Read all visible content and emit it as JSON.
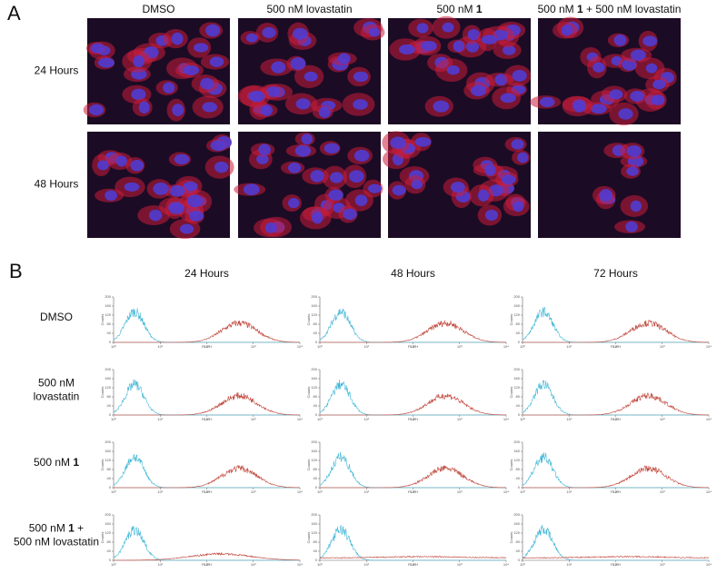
{
  "panel_a": {
    "label": "A",
    "columns": [
      [
        [
          {
            "text": "DMSO"
          }
        ]
      ],
      [
        [
          {
            "text": "500 nM lovastatin"
          }
        ]
      ],
      [
        [
          {
            "text": "500 nM "
          },
          {
            "text": "1",
            "bold": true
          }
        ]
      ],
      [
        [
          {
            "text": "500 nM "
          },
          {
            "text": "1",
            "bold": true
          },
          {
            "text": " + 500 nM lovastatin"
          }
        ]
      ]
    ],
    "rows": [
      "24 Hours",
      "48 Hours"
    ]
  },
  "panel_b": {
    "label": "B",
    "columns": [
      "24 Hours",
      "48 Hours",
      "72 Hours"
    ],
    "rows": [
      [
        [
          {
            "text": "DMSO"
          }
        ]
      ],
      [
        [
          {
            "text": "500 nM"
          }
        ],
        [
          {
            "text": "lovastatin"
          }
        ]
      ],
      [
        [
          {
            "text": "500 nM "
          },
          {
            "text": "1",
            "bold": true
          }
        ]
      ],
      [
        [
          {
            "text": "500 nM "
          },
          {
            "text": "1",
            "bold": true
          },
          {
            "text": " +"
          }
        ],
        [
          {
            "text": "500 nM lovastatin"
          }
        ]
      ]
    ],
    "axis": {
      "y_label": "Counts",
      "x_label": "FL2-H",
      "ylim": [
        0,
        200
      ],
      "yticks": [
        0,
        40,
        80,
        120,
        160,
        200
      ],
      "xlim": [
        1,
        10000
      ],
      "log_x": true,
      "xticks": [
        {
          "value": 1,
          "label": "10⁰"
        },
        {
          "value": 10,
          "label": "10¹"
        },
        {
          "value": 100,
          "label": "10²"
        },
        {
          "value": 1000,
          "label": "10³"
        },
        {
          "value": 10000,
          "label": "10⁴"
        }
      ]
    }
  }
}
